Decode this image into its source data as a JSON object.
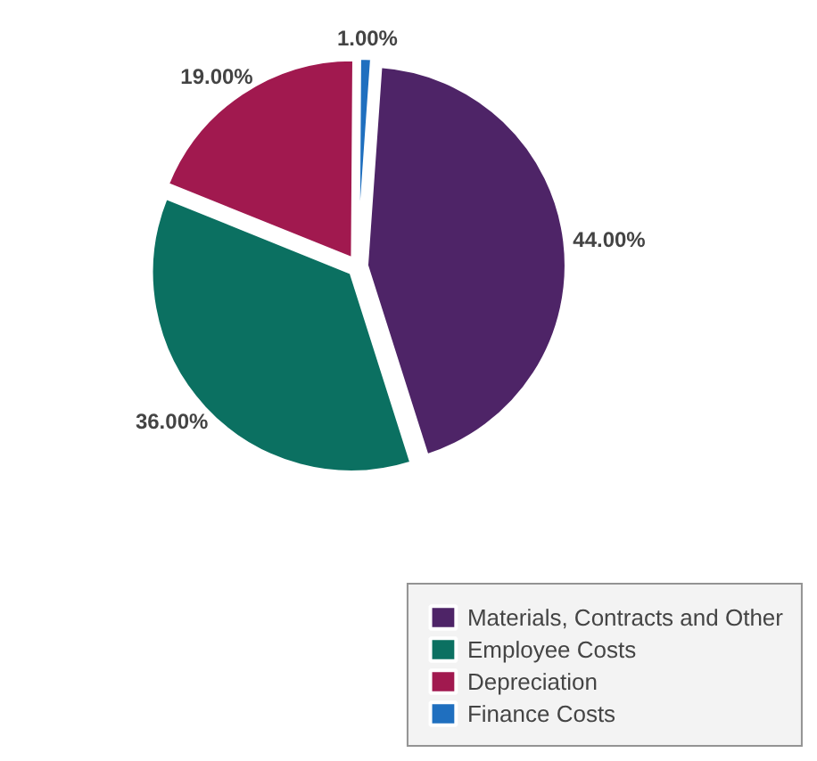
{
  "chart_data": {
    "type": "pie",
    "categories": [
      "Materials, Contracts and Other",
      "Employee Costs",
      "Depreciation",
      "Finance Costs"
    ],
    "values": [
      44,
      36,
      19,
      1
    ],
    "colors": [
      "#4e2467",
      "#0b7061",
      "#a1194f",
      "#1f6fbf"
    ],
    "value_labels": [
      "44.00%",
      "36.00%",
      "19.00%",
      "1.00%"
    ],
    "legend": "bottom right"
  }
}
